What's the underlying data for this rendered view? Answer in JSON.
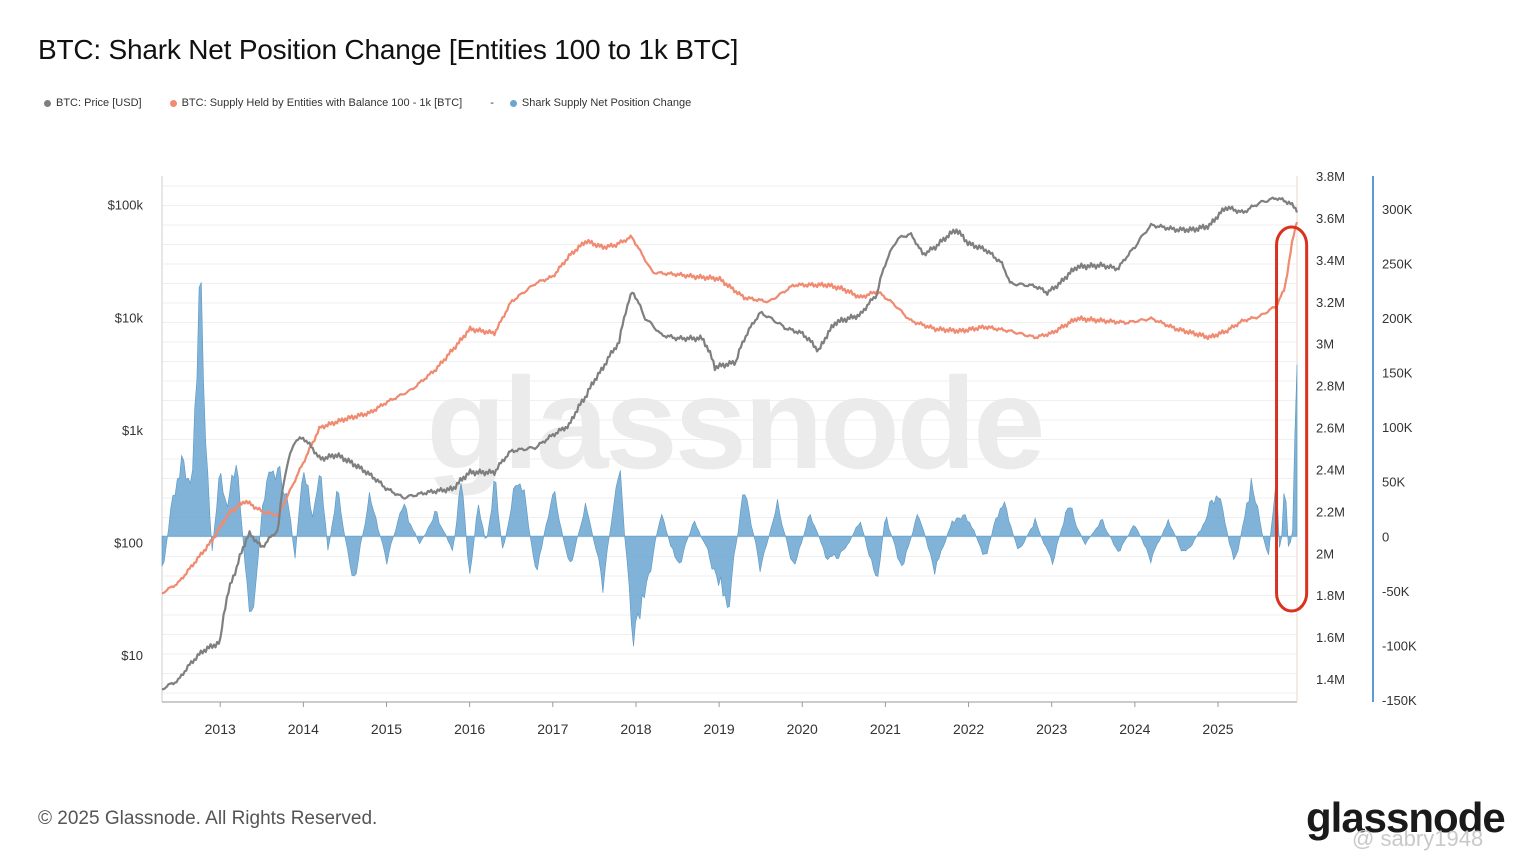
{
  "title": "BTC: Shark Net Position Change [Entities 100 to 1k BTC]",
  "legend": [
    {
      "label": "BTC: Price [USD]",
      "color": "#7f7f7f"
    },
    {
      "label": "BTC: Supply Held by Entities with Balance 100 - 1k [BTC]",
      "color": "#f08a70"
    },
    {
      "label": "Shark Supply Net Position Change",
      "color": "#6aa6d0"
    }
  ],
  "legend_separator": "-",
  "footer": "© 2025 Glassnode. All Rights Reserved.",
  "brand": "glassnode",
  "watermark_text": "glassnode",
  "user_watermark": "@ sabry1948",
  "colors": {
    "price": "#7f7f7f",
    "supply": "#f08a70",
    "netpos": "#6aa6d0",
    "highlight": "#d9321f",
    "axis_right": "#5b9bd5"
  },
  "chart_data": {
    "type": "line",
    "x_ticks": [
      "2013",
      "2014",
      "2015",
      "2016",
      "2017",
      "2018",
      "2019",
      "2020",
      "2021",
      "2022",
      "2023",
      "2024",
      "2025"
    ],
    "xlim": [
      2012.3,
      2025.95
    ],
    "left_axis": {
      "label": "BTC: Price [USD]",
      "scale": "log",
      "ticks": [
        "$10",
        "$100",
        "$1k",
        "$10k",
        "$100k"
      ],
      "tick_values": [
        10,
        100,
        1000,
        10000,
        100000
      ],
      "ylim": [
        4,
        180000
      ]
    },
    "right_axis_1": {
      "label": "BTC: Supply Held by Entities with Balance 100 - 1k [BTC]",
      "ticks": [
        "1.4M",
        "1.6M",
        "1.8M",
        "2M",
        "2.2M",
        "2.4M",
        "2.6M",
        "2.8M",
        "3M",
        "3.2M",
        "3.4M",
        "3.6M",
        "3.8M"
      ],
      "tick_values": [
        1400000,
        1600000,
        1800000,
        2000000,
        2200000,
        2400000,
        2600000,
        2800000,
        3000000,
        3200000,
        3400000,
        3600000,
        3800000
      ],
      "ylim": [
        1300000,
        3800000
      ]
    },
    "right_axis_2": {
      "label": "Shark Supply Net Position Change",
      "ticks": [
        "-150K",
        "-100K",
        "-50K",
        "0",
        "50K",
        "100K",
        "150K",
        "200K",
        "250K",
        "300K"
      ],
      "tick_values": [
        -150000,
        -100000,
        -50000,
        0,
        50000,
        100000,
        150000,
        200000,
        250000,
        300000
      ],
      "ylim": [
        -150000,
        330000
      ]
    },
    "series": [
      {
        "name": "BTC: Price [USD]",
        "axis": "left",
        "x": [
          2012.3,
          2012.5,
          2012.8,
          2013.0,
          2013.2,
          2013.35,
          2013.5,
          2013.7,
          2013.9,
          2014.0,
          2014.2,
          2014.4,
          2014.6,
          2014.8,
          2015.0,
          2015.2,
          2015.5,
          2015.8,
          2016.0,
          2016.3,
          2016.5,
          2016.8,
          2017.0,
          2017.2,
          2017.4,
          2017.6,
          2017.8,
          2017.96,
          2018.1,
          2018.3,
          2018.5,
          2018.8,
          2018.95,
          2019.2,
          2019.5,
          2019.8,
          2020.0,
          2020.2,
          2020.4,
          2020.7,
          2020.9,
          2021.0,
          2021.15,
          2021.3,
          2021.45,
          2021.6,
          2021.85,
          2022.0,
          2022.2,
          2022.4,
          2022.5,
          2022.8,
          2022.95,
          2023.1,
          2023.3,
          2023.6,
          2023.8,
          2024.0,
          2024.2,
          2024.5,
          2024.7,
          2024.9,
          2025.1,
          2025.3,
          2025.5,
          2025.7,
          2025.85,
          2025.95
        ],
        "values": [
          5,
          6,
          11,
          13,
          60,
          120,
          90,
          130,
          800,
          850,
          550,
          600,
          500,
          400,
          300,
          250,
          280,
          300,
          420,
          420,
          650,
          700,
          900,
          1100,
          2000,
          3500,
          6000,
          17000,
          10000,
          7000,
          6500,
          6500,
          3600,
          4000,
          11000,
          8000,
          7200,
          5000,
          9000,
          10500,
          16000,
          30000,
          50000,
          55000,
          36000,
          42000,
          60000,
          45000,
          40000,
          30000,
          20000,
          19000,
          16500,
          20000,
          28000,
          29000,
          27000,
          42000,
          66000,
          60000,
          60000,
          65000,
          95000,
          85000,
          104000,
          115000,
          105000,
          90000
        ]
      },
      {
        "name": "BTC: Supply Held by Entities with Balance 100 - 1k [BTC]",
        "axis": "right1",
        "x": [
          2012.3,
          2012.5,
          2012.7,
          2012.9,
          2013.1,
          2013.3,
          2013.5,
          2013.7,
          2013.9,
          2014.2,
          2014.5,
          2014.8,
          2015.0,
          2015.3,
          2015.6,
          2015.9,
          2016.0,
          2016.3,
          2016.5,
          2016.8,
          2017.0,
          2017.2,
          2017.4,
          2017.6,
          2017.75,
          2017.95,
          2018.2,
          2018.5,
          2018.7,
          2019.0,
          2019.3,
          2019.6,
          2019.9,
          2020.1,
          2020.3,
          2020.5,
          2020.7,
          2020.9,
          2021.1,
          2021.3,
          2021.6,
          2021.9,
          2022.2,
          2022.5,
          2022.8,
          2023.0,
          2023.3,
          2023.6,
          2023.9,
          2024.2,
          2024.5,
          2024.7,
          2024.9,
          2025.1,
          2025.3,
          2025.5,
          2025.7,
          2025.8,
          2025.85,
          2025.9,
          2025.95
        ],
        "values": [
          1810000,
          1860000,
          1960000,
          2060000,
          2190000,
          2250000,
          2200000,
          2180000,
          2350000,
          2600000,
          2640000,
          2670000,
          2720000,
          2780000,
          2880000,
          3020000,
          3070000,
          3050000,
          3200000,
          3290000,
          3320000,
          3420000,
          3490000,
          3460000,
          3470000,
          3510000,
          3340000,
          3330000,
          3320000,
          3310000,
          3220000,
          3200000,
          3280000,
          3280000,
          3280000,
          3260000,
          3220000,
          3250000,
          3190000,
          3110000,
          3070000,
          3060000,
          3080000,
          3060000,
          3030000,
          3050000,
          3120000,
          3110000,
          3100000,
          3120000,
          3070000,
          3050000,
          3030000,
          3060000,
          3110000,
          3130000,
          3180000,
          3260000,
          3380000,
          3500000,
          3590000
        ]
      },
      {
        "name": "Shark Supply Net Position Change",
        "axis": "right2",
        "x": [
          2012.3,
          2012.5,
          2012.65,
          2012.75,
          2012.9,
          2013.0,
          2013.1,
          2013.2,
          2013.3,
          2013.4,
          2013.5,
          2013.6,
          2013.8,
          2013.9,
          2014.0,
          2014.1,
          2014.2,
          2014.3,
          2014.4,
          2014.6,
          2014.8,
          2015.0,
          2015.2,
          2015.4,
          2015.6,
          2015.8,
          2015.9,
          2016.0,
          2016.1,
          2016.2,
          2016.3,
          2016.4,
          2016.6,
          2016.8,
          2017.0,
          2017.2,
          2017.4,
          2017.6,
          2017.8,
          2017.95,
          2018.1,
          2018.3,
          2018.5,
          2018.7,
          2018.9,
          2019.1,
          2019.3,
          2019.5,
          2019.7,
          2019.9,
          2020.1,
          2020.3,
          2020.5,
          2020.7,
          2020.9,
          2021.0,
          2021.2,
          2021.4,
          2021.6,
          2021.8,
          2022.0,
          2022.2,
          2022.4,
          2022.6,
          2022.8,
          2023.0,
          2023.2,
          2023.4,
          2023.6,
          2023.8,
          2024.0,
          2024.2,
          2024.4,
          2024.6,
          2024.8,
          2025.0,
          2025.2,
          2025.4,
          2025.6,
          2025.7,
          2025.75,
          2025.8,
          2025.85,
          2025.9,
          2025.95
        ],
        "values": [
          -50000,
          100000,
          60000,
          305000,
          -20000,
          80000,
          40000,
          100000,
          -40000,
          -115000,
          30000,
          90000,
          60000,
          -30000,
          100000,
          20000,
          85000,
          -20000,
          60000,
          -60000,
          50000,
          -30000,
          40000,
          -10000,
          30000,
          -20000,
          80000,
          -60000,
          40000,
          -10000,
          70000,
          -20000,
          90000,
          -50000,
          60000,
          -40000,
          40000,
          -60000,
          90000,
          -120000,
          -80000,
          30000,
          -40000,
          20000,
          -30000,
          -90000,
          60000,
          -40000,
          40000,
          -40000,
          30000,
          -30000,
          -20000,
          20000,
          -60000,
          25000,
          -40000,
          30000,
          -45000,
          20000,
          25000,
          -30000,
          50000,
          -20000,
          20000,
          -35000,
          40000,
          -10000,
          20000,
          -20000,
          15000,
          -30000,
          20000,
          -25000,
          10000,
          60000,
          -40000,
          70000,
          -30000,
          70000,
          -40000,
          80000,
          -20000,
          10000,
          280000
        ]
      }
    ],
    "highlight": {
      "shape": "rounded-rect",
      "x_range": [
        2025.8,
        2025.97
      ],
      "note": "recent surge"
    }
  }
}
